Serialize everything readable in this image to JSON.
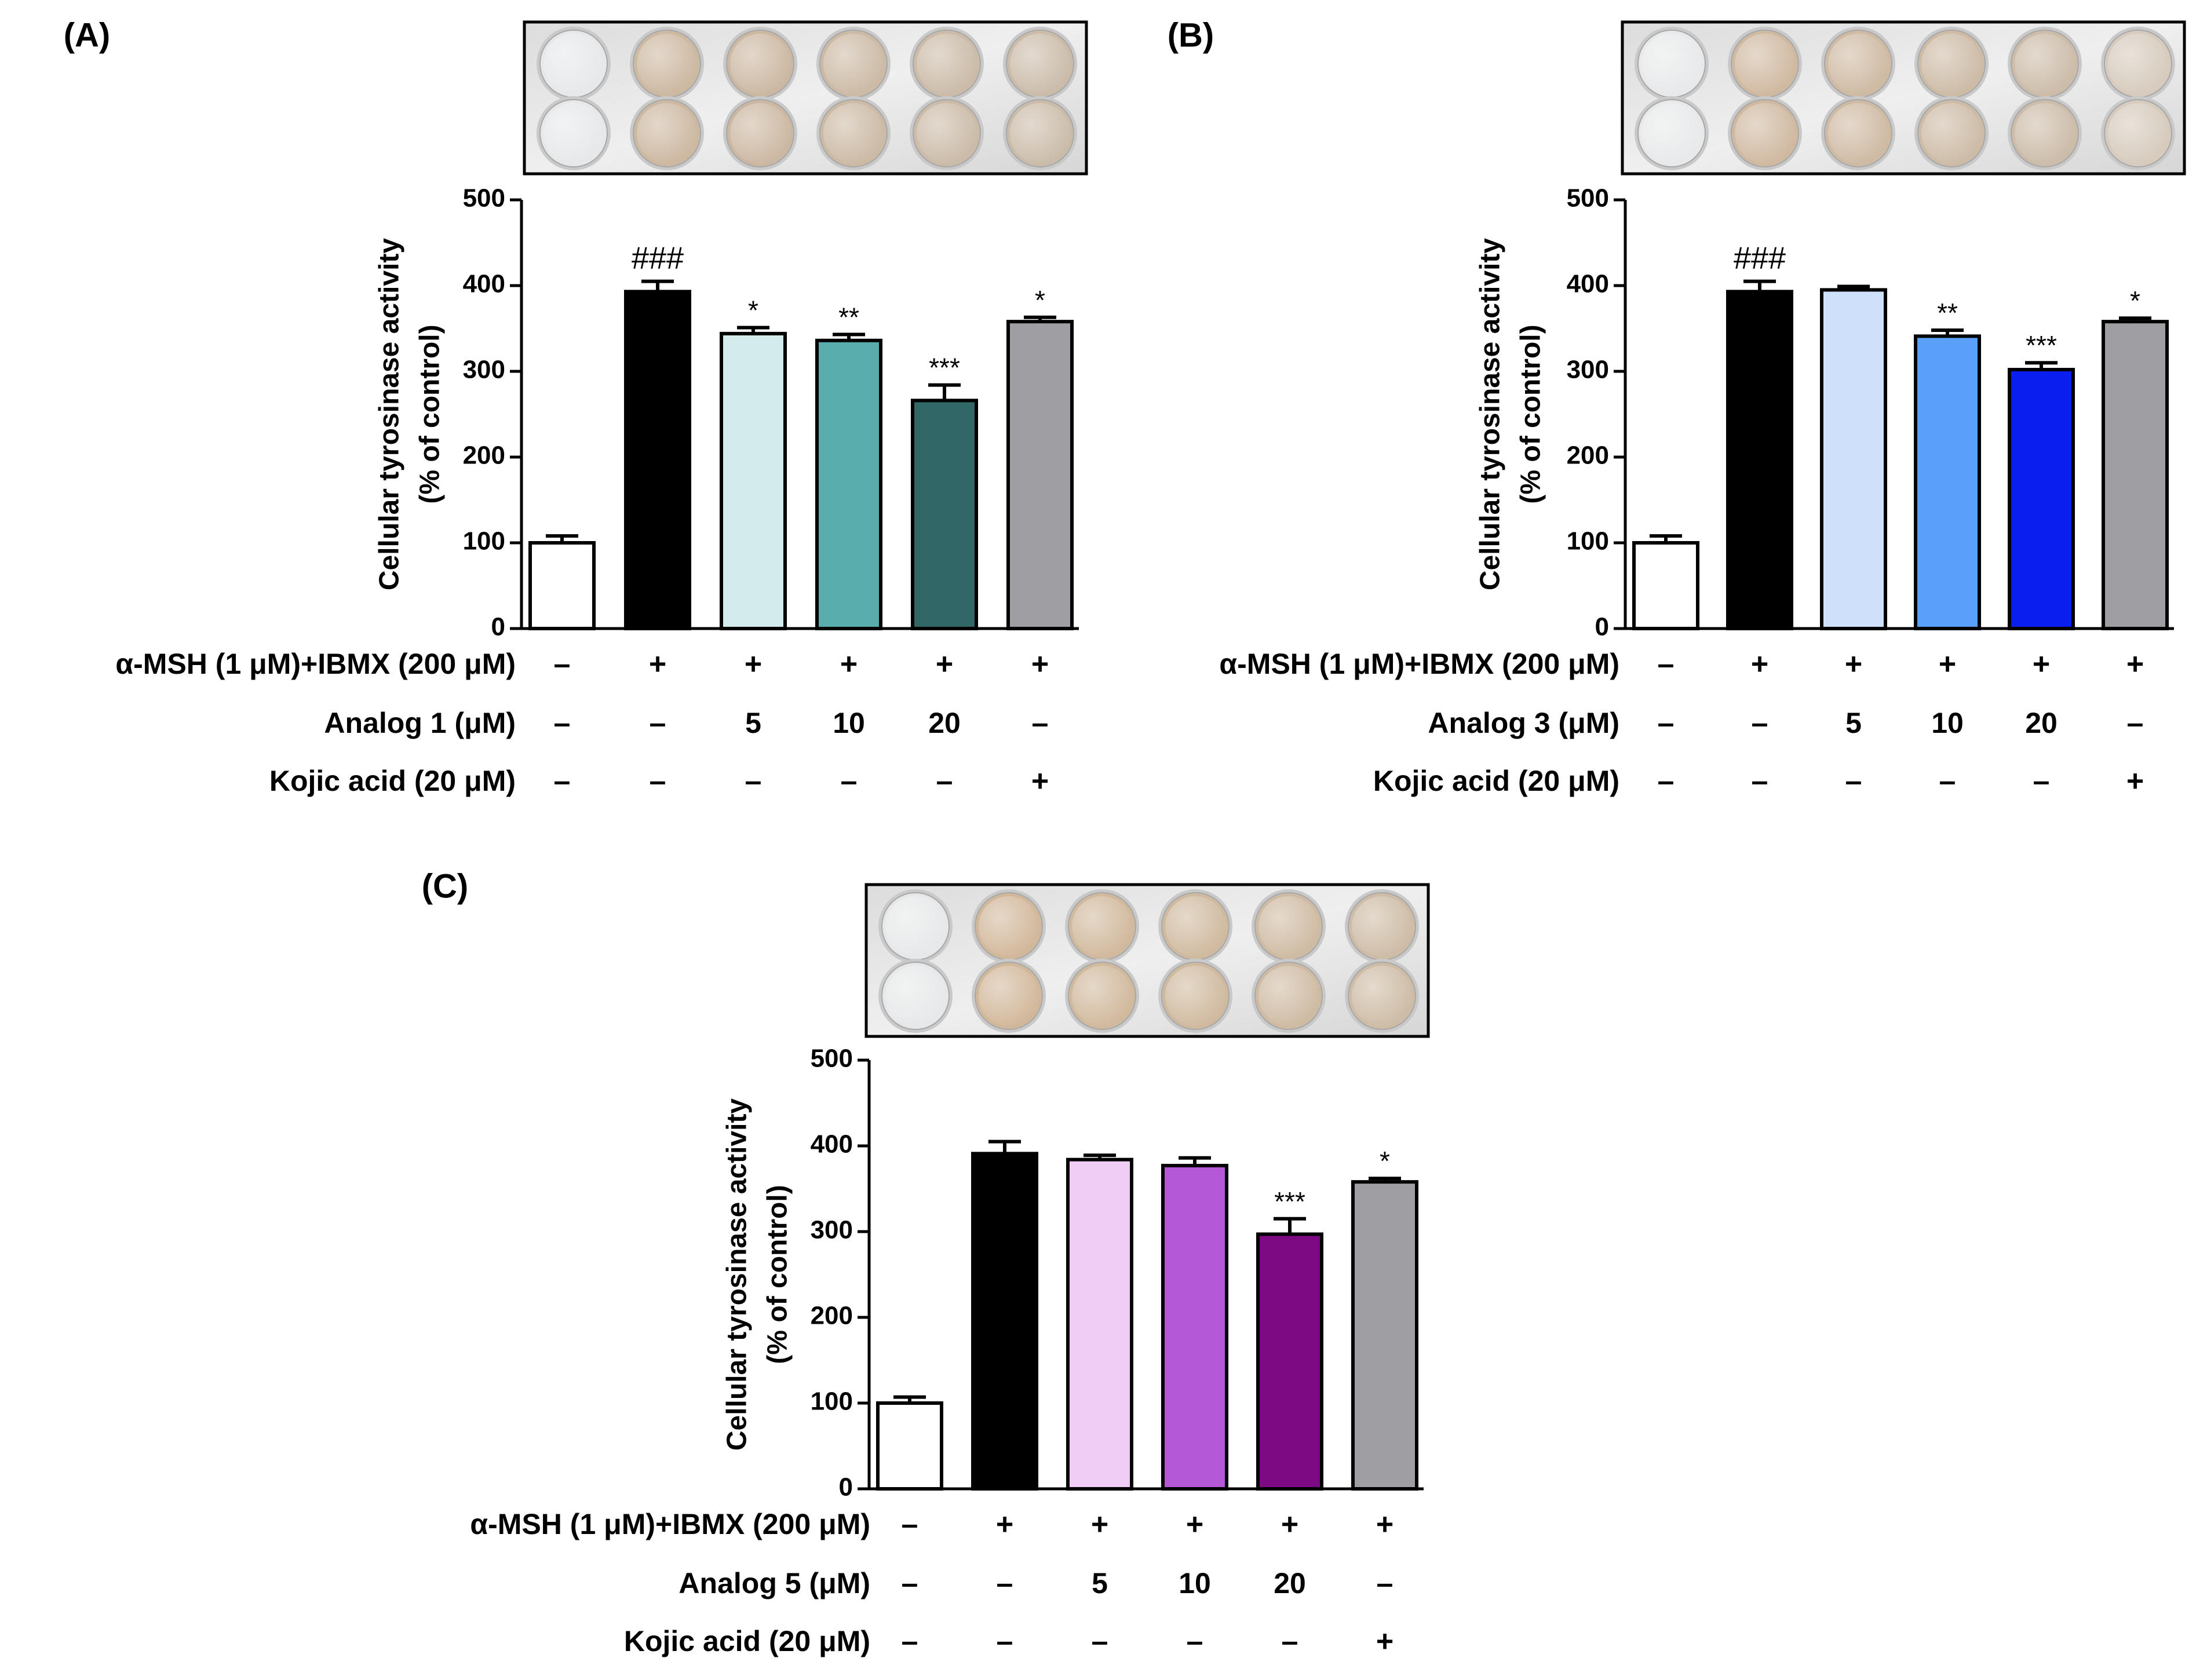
{
  "figure": {
    "y_axis_label_line1": "Cellular tyrosinase activity",
    "y_axis_label_line2": "(% of control)",
    "row_label_msh": "α-MSH (1 μM)+IBMX (200 μM)",
    "row_label_kojic": "Kojic acid (20 μM)",
    "plus": "+",
    "minus": "–"
  },
  "chart_data": [
    {
      "type": "bar",
      "panel": "(A)",
      "analog_label": "Analog 1 (μM)",
      "categories": [
        "Control",
        "α-MSH+IBMX",
        "Analog 1 5 μM",
        "Analog 1 10 μM",
        "Analog 1 20 μM",
        "Kojic acid 20 μM"
      ],
      "values": [
        100,
        393,
        344,
        336,
        266,
        358
      ],
      "errors": [
        8,
        12,
        7,
        7,
        18,
        5
      ],
      "annotations": [
        "",
        "###",
        "*",
        "**",
        "***",
        "*"
      ],
      "bar_colors": [
        "#ffffff",
        "#000000",
        "#d3ebeb",
        "#5aadad",
        "#326767",
        "#9e9ea3"
      ],
      "ylim": [
        0,
        500
      ],
      "yticks": [
        0,
        100,
        200,
        300,
        400,
        500
      ],
      "msh_row": [
        "–",
        "+",
        "+",
        "+",
        "+",
        "+"
      ],
      "analog_row": [
        "–",
        "–",
        "5",
        "10",
        "20",
        "–"
      ],
      "kojic_row": [
        "–",
        "–",
        "–",
        "–",
        "–",
        "+"
      ],
      "well_colors": [
        "#e6e8ea",
        "#cdb8a1",
        "#ccb8a2",
        "#ccbaa5",
        "#cbbba8",
        "#cbbcaa"
      ]
    },
    {
      "type": "bar",
      "panel": "(B)",
      "analog_label": "Analog 3 (μM)",
      "categories": [
        "Control",
        "α-MSH+IBMX",
        "Analog 3 5 μM",
        "Analog 3 10 μM",
        "Analog 3 20 μM",
        "Kojic acid 20 μM"
      ],
      "values": [
        100,
        393,
        395,
        341,
        302,
        358
      ],
      "errors": [
        8,
        12,
        4,
        7,
        8,
        4
      ],
      "annotations": [
        "",
        "###",
        "",
        "**",
        "***",
        "*"
      ],
      "bar_colors": [
        "#ffffff",
        "#000000",
        "#cfe0fa",
        "#5aa0fa",
        "#0a1ef0",
        "#9e9ea3"
      ],
      "ylim": [
        0,
        500
      ],
      "yticks": [
        0,
        100,
        200,
        300,
        400,
        500
      ],
      "msh_row": [
        "–",
        "+",
        "+",
        "+",
        "+",
        "+"
      ],
      "analog_row": [
        "–",
        "–",
        "5",
        "10",
        "20",
        "–"
      ],
      "kojic_row": [
        "–",
        "–",
        "–",
        "–",
        "–",
        "+"
      ],
      "well_colors": [
        "#e8e9ea",
        "#d0b9a1",
        "#cfbaa3",
        "#cdbba6",
        "#ccbca9",
        "#d6cbbd"
      ]
    },
    {
      "type": "bar",
      "panel": "(C)",
      "analog_label": "Analog 5 (μM)",
      "categories": [
        "Control",
        "α-MSH+IBMX",
        "Analog 5 5 μM",
        "Analog 5 10 μM",
        "Analog 5 20 μM",
        "Kojic acid 20 μM"
      ],
      "values": [
        100,
        391,
        384,
        377,
        297,
        358
      ],
      "errors": [
        7,
        14,
        5,
        9,
        18,
        4
      ],
      "annotations": [
        "",
        "",
        "",
        "",
        "***",
        "*"
      ],
      "bar_colors": [
        "#ffffff",
        "#000000",
        "#f0cdf5",
        "#b458d7",
        "#7d0a82",
        "#9e9ea3"
      ],
      "ylim": [
        0,
        500
      ],
      "yticks": [
        0,
        100,
        200,
        300,
        400,
        500
      ],
      "msh_row": [
        "–",
        "+",
        "+",
        "+",
        "+",
        "+"
      ],
      "analog_row": [
        "–",
        "–",
        "5",
        "10",
        "20",
        "–"
      ],
      "kojic_row": [
        "–",
        "–",
        "–",
        "–",
        "–",
        "+"
      ],
      "well_colors": [
        "#e7e8e9",
        "#d2b89b",
        "#d1b99d",
        "#d0ba9f",
        "#cfbba3",
        "#cebca6"
      ]
    }
  ]
}
